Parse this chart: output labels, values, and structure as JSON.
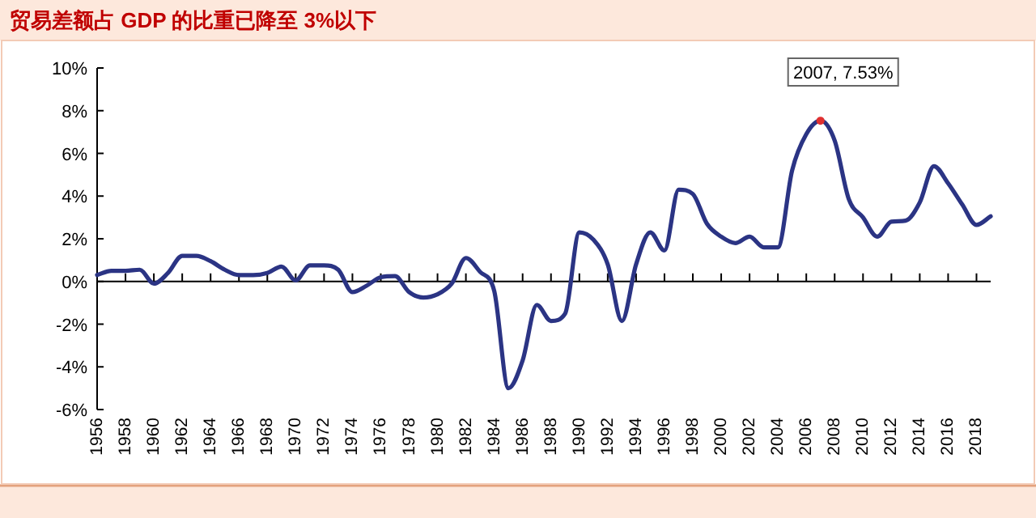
{
  "chart_data": {
    "type": "line",
    "title": "贸易差额占 GDP 的比重已降至 3%以下",
    "x": [
      1956,
      1957,
      1958,
      1959,
      1960,
      1961,
      1962,
      1963,
      1964,
      1965,
      1966,
      1967,
      1968,
      1969,
      1970,
      1971,
      1972,
      1973,
      1974,
      1975,
      1976,
      1977,
      1978,
      1979,
      1980,
      1981,
      1982,
      1983,
      1984,
      1985,
      1986,
      1987,
      1988,
      1989,
      1990,
      1991,
      1992,
      1993,
      1994,
      1995,
      1996,
      1997,
      1998,
      1999,
      2000,
      2001,
      2002,
      2003,
      2004,
      2005,
      2006,
      2007,
      2008,
      2009,
      2010,
      2011,
      2012,
      2013,
      2014,
      2015,
      2016,
      2017,
      2018,
      2019
    ],
    "series": [
      {
        "color": "#2b3484",
        "values": [
          0.3,
          0.5,
          0.5,
          0.55,
          -0.1,
          0.4,
          1.2,
          1.2,
          0.95,
          0.55,
          0.3,
          0.3,
          0.4,
          0.7,
          0.05,
          0.75,
          0.75,
          0.55,
          -0.5,
          -0.2,
          0.2,
          0.25,
          -0.5,
          -0.75,
          -0.6,
          -0.1,
          1.1,
          0.45,
          -0.45,
          -5.0,
          -3.7,
          -1.1,
          -1.85,
          -1.5,
          2.3,
          1.95,
          0.8,
          -1.85,
          0.8,
          2.3,
          1.45,
          4.3,
          4.1,
          2.7,
          2.1,
          1.8,
          2.1,
          1.6,
          1.6,
          5.2,
          6.9,
          7.53,
          6.6,
          3.85,
          3.0,
          2.1,
          2.8,
          2.85,
          3.7,
          5.4,
          4.6,
          3.6,
          2.65,
          3.05
        ]
      }
    ],
    "xlim": [
      1956,
      2019
    ],
    "xticks": [
      1956,
      1958,
      1960,
      1962,
      1964,
      1966,
      1968,
      1970,
      1972,
      1974,
      1976,
      1978,
      1980,
      1982,
      1984,
      1986,
      1988,
      1990,
      1992,
      1994,
      1996,
      1998,
      2000,
      2002,
      2004,
      2006,
      2008,
      2010,
      2012,
      2014,
      2016,
      2018
    ],
    "ylim": [
      -6,
      10
    ],
    "yticks": [
      {
        "value": -6,
        "label": "-6%"
      },
      {
        "value": -4,
        "label": "-4%"
      },
      {
        "value": -2,
        "label": "-2%"
      },
      {
        "value": 0,
        "label": "0%"
      },
      {
        "value": 2,
        "label": "2%"
      },
      {
        "value": 4,
        "label": "4%"
      },
      {
        "value": 6,
        "label": "6%"
      },
      {
        "value": 8,
        "label": "8%"
      },
      {
        "value": 10,
        "label": "10%"
      }
    ],
    "annotations": [
      {
        "text": "2007, 7.53%",
        "x": 2007,
        "y": 7.53
      }
    ],
    "line_style": "solid",
    "marker": "none"
  }
}
